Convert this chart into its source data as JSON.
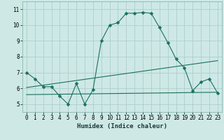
{
  "xlabel": "Humidex (Indice chaleur)",
  "background_color": "#cde8e5",
  "grid_color": "#aacfcc",
  "line_color": "#1a7060",
  "x_ticks": [
    0,
    1,
    2,
    3,
    4,
    5,
    6,
    7,
    8,
    9,
    10,
    11,
    12,
    13,
    14,
    15,
    16,
    17,
    18,
    19,
    20,
    21,
    22,
    23
  ],
  "ylim": [
    4.5,
    11.5
  ],
  "xlim": [
    -0.5,
    23.5
  ],
  "yticks": [
    5,
    6,
    7,
    8,
    9,
    10,
    11
  ],
  "curve1_x": [
    0,
    1,
    2,
    3,
    4,
    5,
    6,
    7,
    8,
    9,
    10,
    11,
    12,
    13,
    14,
    15,
    16,
    17,
    18,
    19,
    20,
    21,
    22,
    23
  ],
  "curve1_y": [
    7.0,
    6.6,
    6.1,
    6.1,
    5.5,
    5.0,
    6.3,
    5.0,
    5.9,
    9.0,
    10.0,
    10.15,
    10.75,
    10.75,
    10.8,
    10.75,
    9.85,
    8.9,
    7.85,
    7.3,
    5.85,
    6.4,
    6.6,
    5.7
  ],
  "curve2_x": [
    0,
    23
  ],
  "curve2_y": [
    6.05,
    7.75
  ],
  "curve3_x": [
    0,
    23
  ],
  "curve3_y": [
    5.6,
    5.75
  ],
  "markersize": 2.5,
  "linewidth": 0.8,
  "tick_fontsize": 5.5,
  "xlabel_fontsize": 6.5
}
